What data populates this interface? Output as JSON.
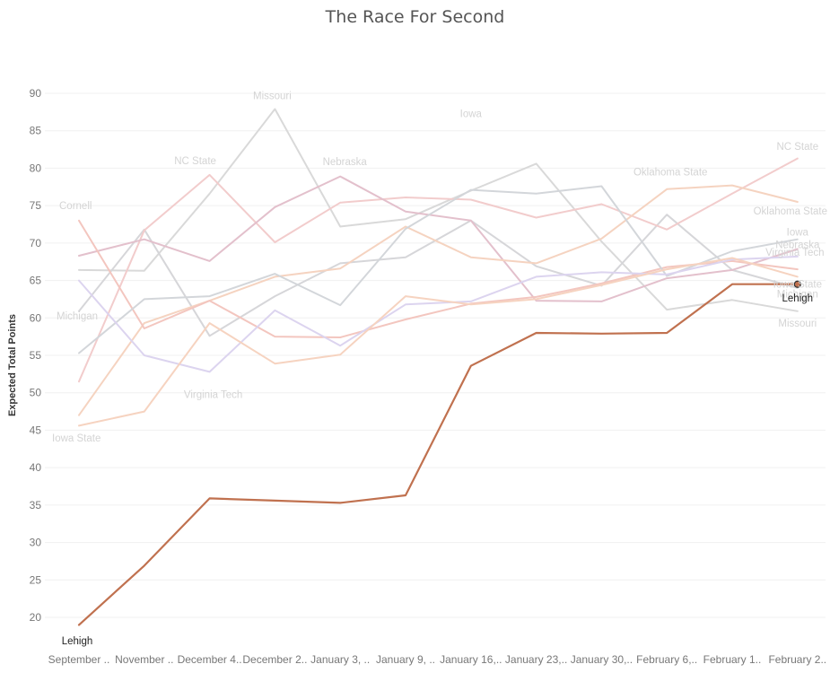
{
  "chart_data": {
    "type": "line",
    "title": "The Race For Second",
    "xlabel": "",
    "ylabel": "Expected Total Points",
    "ylim": [
      17,
      92
    ],
    "yticks": [
      20,
      25,
      30,
      35,
      40,
      45,
      50,
      55,
      60,
      65,
      70,
      75,
      80,
      85,
      90
    ],
    "categories": [
      "September ..",
      "November ..",
      "December 4..",
      "December 2..",
      "January 3, ..",
      "January 9, ..",
      "January 16,..",
      "January 23,..",
      "January 30,..",
      "February 6,..",
      "February 1..",
      "February 2.."
    ],
    "grid": true,
    "highlight_color": "#c0714f",
    "series": [
      {
        "name": "Lehigh",
        "highlight": true,
        "color": "#c0714f",
        "values": [
          19.0,
          26.9,
          35.9,
          35.6,
          35.3,
          36.3,
          53.6,
          58.0,
          57.9,
          58.0,
          64.5,
          64.5
        ]
      },
      {
        "name": "Missouri",
        "color": "#d9d9d9",
        "values": [
          66.4,
          66.3,
          76.6,
          87.9,
          72.2,
          73.2,
          77.0,
          80.6,
          70.2,
          61.1,
          62.4,
          60.9
        ]
      },
      {
        "name": "Iowa",
        "color": "#d6d6d9",
        "values": [
          60.9,
          71.8,
          57.6,
          62.9,
          67.3,
          68.1,
          73.0,
          66.9,
          64.3,
          73.8,
          66.4,
          64.0
        ]
      },
      {
        "name": "NC State",
        "color": "#f2cccc",
        "values": [
          51.5,
          71.7,
          79.1,
          70.1,
          75.4,
          76.1,
          75.8,
          73.4,
          75.2,
          71.8,
          76.6,
          81.3
        ]
      },
      {
        "name": "Nebraska",
        "color": "#e3c0cc",
        "values": [
          68.3,
          70.5,
          67.6,
          74.8,
          78.9,
          74.2,
          73.0,
          62.3,
          62.2,
          65.3,
          66.4,
          69.2
        ]
      },
      {
        "name": "Oklahoma State",
        "color": "#f5d3c0",
        "values": [
          47.0,
          59.3,
          62.3,
          65.5,
          66.6,
          72.2,
          68.1,
          67.3,
          70.6,
          77.2,
          77.7,
          75.5
        ]
      },
      {
        "name": "Cornell",
        "color": "#f3c6bf",
        "values": [
          73.0,
          58.6,
          62.3,
          57.5,
          57.4,
          59.8,
          61.9,
          62.8,
          64.6,
          66.8,
          67.6,
          66.5
        ]
      },
      {
        "name": "Michigan",
        "color": "#d3d6da",
        "values": [
          55.3,
          62.5,
          62.9,
          65.9,
          61.7,
          71.9,
          77.1,
          76.6,
          77.6,
          65.6,
          68.9,
          70.5
        ]
      },
      {
        "name": "Virginia Tech",
        "color": "#dcd4ef",
        "values": [
          65.0,
          55.0,
          52.8,
          61.0,
          56.3,
          61.8,
          62.2,
          65.5,
          66.1,
          65.8,
          67.8,
          68.2
        ]
      },
      {
        "name": "Iowa State",
        "color": "#f6d3c0",
        "values": [
          45.6,
          47.5,
          59.3,
          53.9,
          55.1,
          62.9,
          61.8,
          62.5,
          64.4,
          66.5,
          68.0,
          65.5
        ]
      }
    ],
    "labels": [
      {
        "series": "Cornell",
        "text": "Cornell",
        "anchor": "start",
        "at": 0,
        "value": 75.0,
        "dx": -22
      },
      {
        "series": "Michigan",
        "text": "Michigan",
        "anchor": "start",
        "at": 0,
        "value": 60.3,
        "dx": -25
      },
      {
        "series": "Iowa State",
        "text": "Iowa State",
        "anchor": "start",
        "at": 0,
        "value": 44.0,
        "dx": -30
      },
      {
        "series": "NC State",
        "text": "NC State",
        "anchor": "middle",
        "at": 2,
        "value": 81.0,
        "dx": -16
      },
      {
        "series": "Virginia Tech",
        "text": "Virginia Tech",
        "anchor": "middle",
        "at": 2,
        "value": 49.8,
        "dx": 4
      },
      {
        "series": "Missouri",
        "text": "Missouri",
        "anchor": "middle",
        "at": 3,
        "value": 89.7,
        "dx": -3
      },
      {
        "series": "Nebraska",
        "text": "Nebraska",
        "anchor": "middle",
        "at": 4,
        "value": 80.9,
        "dx": 5
      },
      {
        "series": "Iowa",
        "text": "Iowa",
        "anchor": "middle",
        "at": 6,
        "value": 87.3,
        "dx": 0
      },
      {
        "series": "Oklahoma State",
        "text": "Oklahoma State",
        "anchor": "middle",
        "at": 9,
        "value": 79.5,
        "dx": 4
      },
      {
        "series": "NC State",
        "text": "NC State",
        "anchor": "middle",
        "at": 11,
        "value": 82.9,
        "dx": 0
      },
      {
        "series": "Oklahoma State",
        "text": "Oklahoma State",
        "anchor": "middle",
        "at": 11,
        "value": 74.3,
        "dx": -8
      },
      {
        "series": "Iowa",
        "text": "Iowa",
        "anchor": "middle",
        "at": 11,
        "value": 71.5,
        "dx": 0
      },
      {
        "series": "Nebraska",
        "text": "Nebraska",
        "anchor": "middle",
        "at": 11,
        "value": 69.8,
        "dx": 0
      },
      {
        "series": "Virginia Tech",
        "text": "Virginia Tech",
        "anchor": "middle",
        "at": 11,
        "value": 68.8,
        "dx": -3
      },
      {
        "series": "Iowa State",
        "text": "Iowa State",
        "anchor": "middle",
        "at": 11,
        "value": 64.5,
        "dx": 0
      },
      {
        "series": "Michigan",
        "text": "Michigan",
        "anchor": "middle",
        "at": 11,
        "value": 63.2,
        "dx": 0
      },
      {
        "series": "Missouri",
        "text": "Missouri",
        "anchor": "middle",
        "at": 11,
        "value": 59.3,
        "dx": 0
      },
      {
        "series": "Lehigh",
        "text": "Lehigh",
        "anchor": "middle",
        "at": 11,
        "value": 62.7,
        "dx": 0,
        "highlight": true
      },
      {
        "series": "Lehigh",
        "text": "Lehigh",
        "anchor": "middle",
        "at": 0,
        "value": 16.9,
        "dx": -2,
        "highlight": true
      }
    ]
  }
}
